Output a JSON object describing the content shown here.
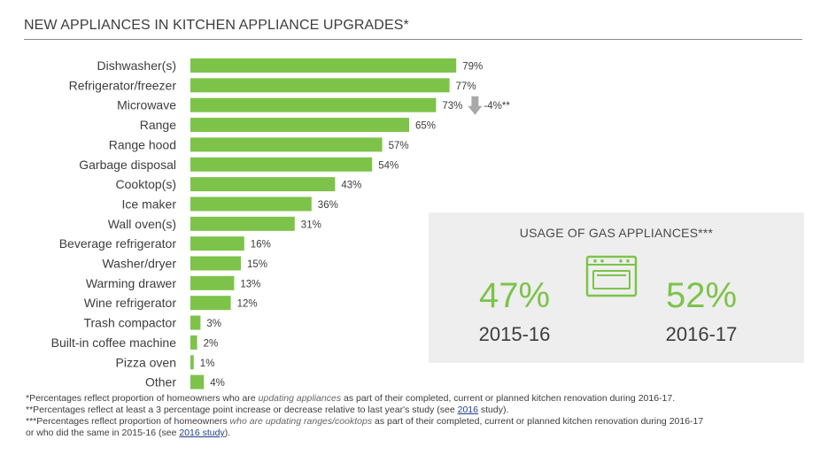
{
  "title": "NEW APPLIANCES IN KITCHEN APPLIANCE UPGRADES*",
  "chart_data": {
    "type": "bar",
    "orientation": "horizontal",
    "title": "NEW APPLIANCES IN KITCHEN APPLIANCE UPGRADES*",
    "unit": "%",
    "categories": [
      "Dishwasher(s)",
      "Refrigerator/freezer",
      "Microwave",
      "Range",
      "Range hood",
      "Garbage disposal",
      "Cooktop(s)",
      "Ice maker",
      "Wall oven(s)",
      "Beverage refrigerator",
      "Washer/dryer",
      "Warming drawer",
      "Wine refrigerator",
      "Trash compactor",
      "Built-in coffee machine",
      "Pizza oven",
      "Other"
    ],
    "values": [
      79,
      77,
      73,
      65,
      57,
      54,
      43,
      36,
      31,
      16,
      15,
      13,
      12,
      3,
      2,
      1,
      4
    ],
    "value_labels": [
      "79%",
      "77%",
      "73%",
      "65%",
      "57%",
      "54%",
      "43%",
      "36%",
      "31%",
      "16%",
      "15%",
      "13%",
      "12%",
      "3%",
      "2%",
      "1%",
      "4%"
    ],
    "annotations": [
      {
        "category": "Microwave",
        "text": "-4%**",
        "icon": "down-arrow-icon"
      }
    ],
    "grid": false,
    "bar_color": "#7dc34a"
  },
  "gas_panel": {
    "title": "USAGE OF GAS APPLIANCES***",
    "icon": "oven-icon",
    "stats": [
      {
        "percent": "47%",
        "year": "2015-16"
      },
      {
        "percent": "52%",
        "year": "2016-17"
      }
    ],
    "accent_color": "#7dc34a",
    "background": "#eeeeee"
  },
  "footnotes": {
    "note1": {
      "prefix": "*Percentages reflect proportion of homeowners who are ",
      "emphasis": "updating appliances",
      "suffix": " as part of their completed, current or planned kitchen renovation during 2016-17."
    },
    "note2": {
      "prefix": "**Percentages reflect at least a 3 percentage point increase or decrease relative to last year's study (see ",
      "link": "2016",
      "suffix": " study)."
    },
    "note3": {
      "prefix": "***Percentages reflect proportion of homeowners ",
      "emphasis": "who are updating ranges/cooktops",
      "suffix": " as part of their completed, current or planned kitchen renovation during 2016-17",
      "line2_prefix": "or who did the same in 2015-16 (see ",
      "link": "2016 study",
      "line2_suffix": ")."
    }
  }
}
